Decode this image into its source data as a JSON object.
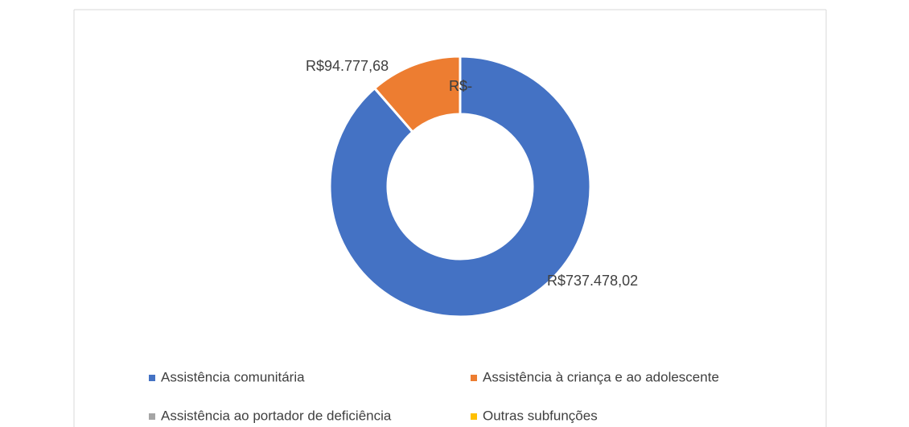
{
  "chart_data": {
    "type": "donut",
    "categories": [
      "Assistência comunitária",
      "Assistência à criança e ao adolescente",
      "Assistência ao portador de deficiência",
      "Outras subfunções"
    ],
    "values": [
      737478.02,
      94777.68,
      0,
      0
    ],
    "value_labels": [
      "R$737.478,02",
      "R$94.777,68",
      "R$-",
      "R$-"
    ],
    "colors": [
      "#4472c4",
      "#ed7d31",
      "#a5a5a5",
      "#ffc000"
    ],
    "legend": "bottom"
  }
}
